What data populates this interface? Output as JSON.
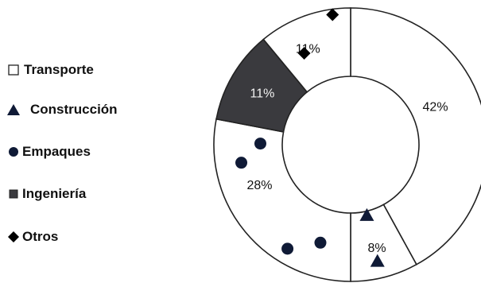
{
  "chart_data": {
    "type": "pie",
    "variant": "donut",
    "legend_position": "left",
    "slices": [
      {
        "label": "Transporte",
        "value": 42,
        "display": "42%",
        "fill": "#ffffff",
        "marker": "square-outline"
      },
      {
        "label": "Construcción",
        "value": 8,
        "display": "8%",
        "fill": "#ffffff",
        "marker": "triangle"
      },
      {
        "label": "Empaques",
        "value": 28,
        "display": "28%",
        "fill": "#ffffff",
        "marker": "circle"
      },
      {
        "label": "Ingeniería",
        "value": 11,
        "display": "11%",
        "fill": "#3a3a3e",
        "marker": "square-filled"
      },
      {
        "label": "Otros",
        "value": 11,
        "display": "11%",
        "fill": "#ffffff",
        "marker": "diamond"
      }
    ],
    "colors": {
      "marker": "#0f1a36",
      "outline": "#222222",
      "dark_slice": "#3a3a3e"
    }
  }
}
